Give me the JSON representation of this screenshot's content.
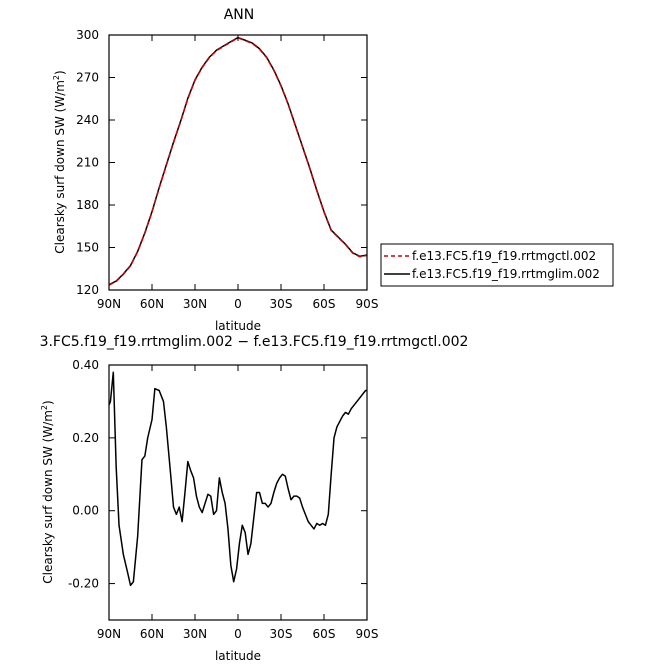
{
  "chart_data": [
    {
      "type": "line",
      "title": "ANN",
      "xlabel": "latitude",
      "ylabel": "Clearsky surf down SW (W/m",
      "ylabel_sup": "2",
      "ylabel_close": ")",
      "xlim": [
        90,
        -90
      ],
      "ylim": [
        120,
        300
      ],
      "xticks": [
        90,
        60,
        30,
        0,
        -30,
        -60,
        -90
      ],
      "xtick_labels": [
        "90N",
        "60N",
        "30N",
        "0",
        "30S",
        "60S",
        "90S"
      ],
      "yticks": [
        120,
        150,
        180,
        210,
        240,
        270,
        300
      ],
      "ytick_labels": [
        "120",
        "150",
        "180",
        "210",
        "240",
        "270",
        "300"
      ],
      "legend": "right",
      "series": [
        {
          "name": "f.e13.FC5.f19_f19.rrtmgctl.002",
          "color": "#cc0000",
          "dash": "dashed",
          "x": [
            90,
            85,
            80,
            75,
            70,
            65,
            60,
            55,
            50,
            45,
            40,
            35,
            30,
            25,
            20,
            15,
            10,
            5,
            0,
            -5,
            -10,
            -15,
            -20,
            -25,
            -30,
            -35,
            -40,
            -45,
            -50,
            -55,
            -60,
            -65,
            -70,
            -75,
            -80,
            -85,
            -88,
            -90
          ],
          "y": [
            123.5,
            126,
            131,
            137,
            147,
            160,
            175,
            192,
            208,
            224,
            239,
            255,
            268,
            277,
            284,
            289,
            292,
            295,
            298,
            296,
            294,
            290,
            284,
            275,
            264,
            251,
            236,
            221,
            206,
            190,
            175,
            162,
            157,
            152,
            146,
            143.5,
            144,
            144.5
          ]
        },
        {
          "name": "f.e13.FC5.f19_f19.rrtmglim.002",
          "color": "#000000",
          "dash": "solid",
          "x": [
            90,
            85,
            80,
            75,
            70,
            65,
            60,
            55,
            50,
            45,
            40,
            35,
            30,
            25,
            20,
            15,
            10,
            5,
            0,
            -5,
            -10,
            -15,
            -20,
            -25,
            -30,
            -35,
            -40,
            -45,
            -50,
            -55,
            -60,
            -65,
            -70,
            -75,
            -80,
            -85,
            -88,
            -90
          ],
          "y": [
            123.8,
            126.3,
            131.3,
            137.3,
            147.3,
            160.3,
            175.3,
            192.3,
            208.3,
            224.3,
            239.3,
            255.3,
            268.3,
            277.3,
            284.3,
            289.3,
            292.3,
            295.3,
            298.2,
            296.3,
            294.3,
            290.3,
            284.3,
            275.3,
            264.3,
            251.3,
            236.3,
            221.3,
            206.3,
            190.3,
            175.3,
            162.3,
            157.3,
            152.3,
            146.3,
            143.8,
            144.3,
            144.8
          ]
        }
      ]
    },
    {
      "type": "line",
      "title": "3.FC5.f19_f19.rrtmglim.002 − f.e13.FC5.f19_f19.rrtmgctl.002",
      "xlabel": "latitude",
      "ylabel": "Clearsky surf down SW (W/m",
      "ylabel_sup": "2",
      "ylabel_close": ")",
      "xlim": [
        90,
        -90
      ],
      "ylim": [
        -0.3,
        0.4
      ],
      "xticks": [
        90,
        60,
        30,
        0,
        -30,
        -60,
        -90
      ],
      "xtick_labels": [
        "90N",
        "60N",
        "30N",
        "0",
        "30S",
        "60S",
        "90S"
      ],
      "yticks": [
        -0.2,
        0,
        0.2,
        0.4
      ],
      "ytick_labels": [
        "-0.20",
        "0.00",
        "0.20",
        "0.40"
      ],
      "series": [
        {
          "color": "#000000",
          "dash": "solid",
          "x": [
            90,
            89,
            87,
            85,
            83,
            80,
            77,
            75,
            73,
            70,
            67,
            65,
            63,
            60,
            58,
            55,
            52,
            50,
            47,
            45,
            43,
            41,
            39,
            37,
            35,
            33,
            31,
            29,
            27,
            25,
            23,
            21,
            19,
            17,
            15,
            13,
            11,
            9,
            7,
            5,
            3,
            1,
            -1,
            -3,
            -5,
            -7,
            -9,
            -11,
            -13,
            -15,
            -17,
            -19,
            -21,
            -23,
            -25,
            -27,
            -29,
            -31,
            -33,
            -35,
            -37,
            -39,
            -41,
            -43,
            -45,
            -47,
            -49,
            -51,
            -53,
            -55,
            -57,
            -59,
            -61,
            -63,
            -65,
            -67,
            -69,
            -71,
            -73,
            -75,
            -77,
            -79,
            -81,
            -83,
            -85,
            -87,
            -89,
            -90
          ],
          "y": [
            0.29,
            0.3,
            0.38,
            0.12,
            -0.04,
            -0.12,
            -0.17,
            -0.205,
            -0.195,
            -0.07,
            0.14,
            0.15,
            0.2,
            0.25,
            0.335,
            0.33,
            0.3,
            0.23,
            0.1,
            0.01,
            -0.01,
            0.01,
            -0.03,
            0.05,
            0.135,
            0.11,
            0.09,
            0.04,
            0.01,
            -0.005,
            0.02,
            0.045,
            0.04,
            -0.01,
            0.0,
            0.09,
            0.05,
            0.02,
            -0.05,
            -0.15,
            -0.195,
            -0.16,
            -0.09,
            -0.04,
            -0.06,
            -0.12,
            -0.09,
            -0.02,
            0.05,
            0.05,
            0.02,
            0.02,
            0.01,
            0.02,
            0.05,
            0.075,
            0.09,
            0.1,
            0.095,
            0.06,
            0.03,
            0.04,
            0.04,
            0.035,
            0.01,
            -0.01,
            -0.03,
            -0.04,
            -0.05,
            -0.035,
            -0.04,
            -0.035,
            -0.04,
            -0.01,
            0.1,
            0.2,
            0.23,
            0.245,
            0.26,
            0.27,
            0.265,
            0.28,
            0.29,
            0.3,
            0.31,
            0.32,
            0.33,
            0.33
          ]
        }
      ]
    }
  ]
}
